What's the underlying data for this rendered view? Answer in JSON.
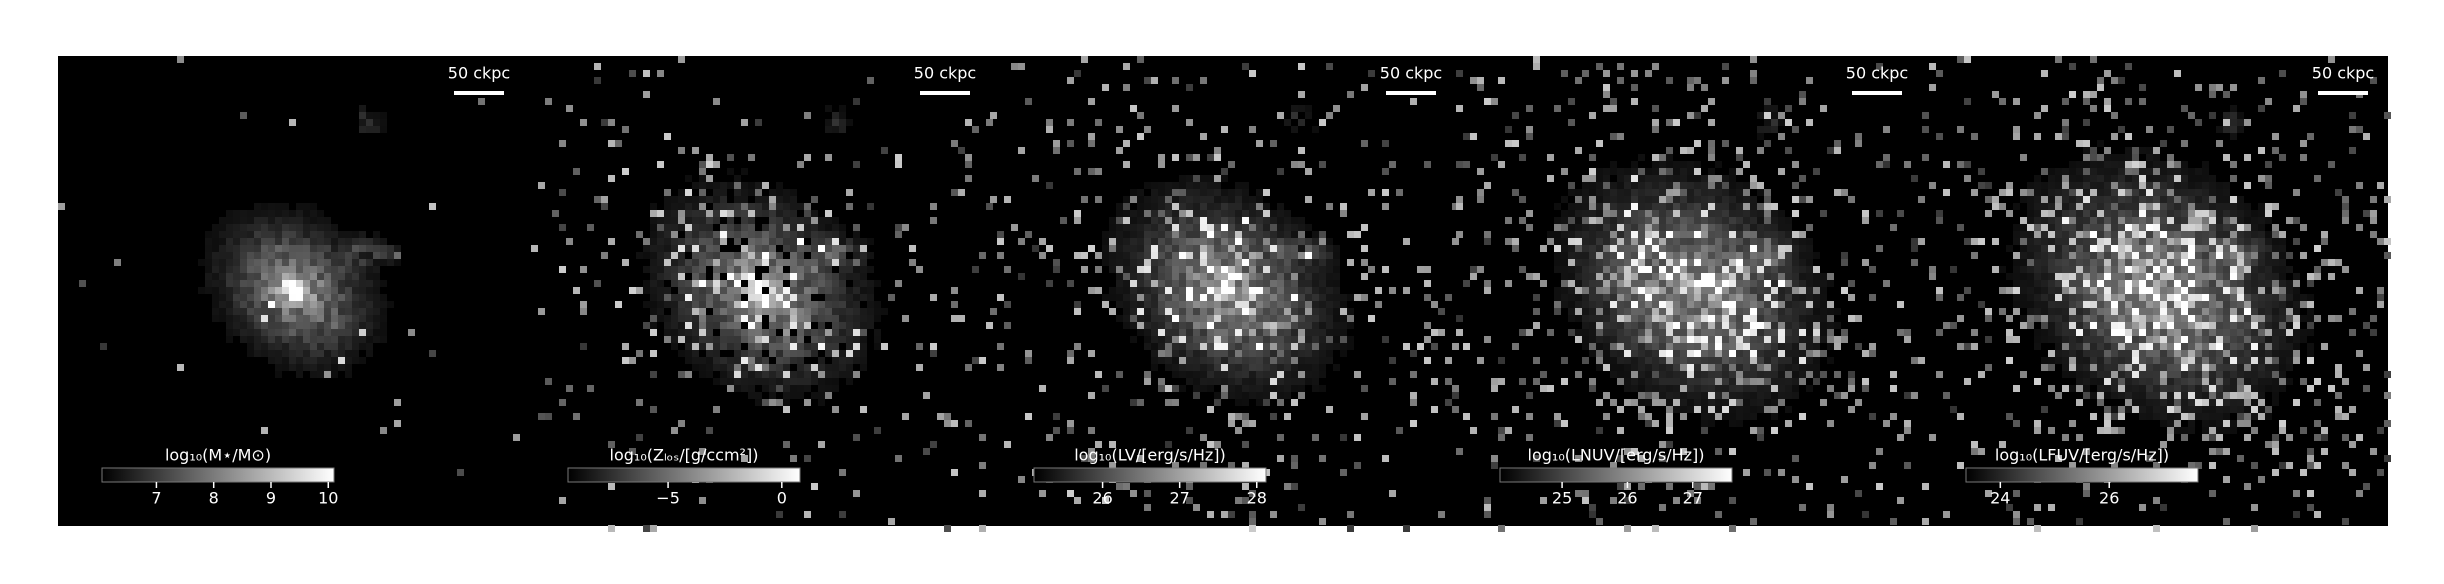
{
  "chart_data": [
    {
      "type": "image",
      "scale_bar_label": "50 ckpc",
      "colorbar": {
        "label": "log₁₀(M⋆/M⊙)",
        "lim": [
          6.05,
          10.1
        ],
        "ticks": [
          7,
          8,
          9,
          10
        ]
      }
    },
    {
      "type": "image",
      "scale_bar_label": "50 ckpc",
      "colorbar": {
        "label": "log₁₀(Zₗₒₛ/[g/ccm²])",
        "lim": [
          -9.4,
          0.8
        ],
        "ticks": [
          {
            "value": -5,
            "label": "−5"
          },
          0
        ]
      }
    },
    {
      "type": "image",
      "scale_bar_label": "50 ckpc",
      "colorbar": {
        "label": "log₁₀(LV/[erg/s/Hz])",
        "lim": [
          25.11,
          28.12
        ],
        "ticks": [
          26,
          27,
          28
        ]
      }
    },
    {
      "type": "image",
      "scale_bar_label": "50 ckpc",
      "colorbar": {
        "label": "log₁₀(LNUV/[erg/s/Hz])",
        "lim": [
          24.05,
          27.6
        ],
        "ticks": [
          25,
          26,
          27
        ]
      }
    },
    {
      "type": "image",
      "scale_bar_label": "50 ckpc",
      "colorbar": {
        "label": "log₁₀(LFUV/[erg/s/Hz])",
        "lim": [
          23.37,
          27.63
        ],
        "ticks": [
          24,
          26
        ]
      }
    }
  ]
}
